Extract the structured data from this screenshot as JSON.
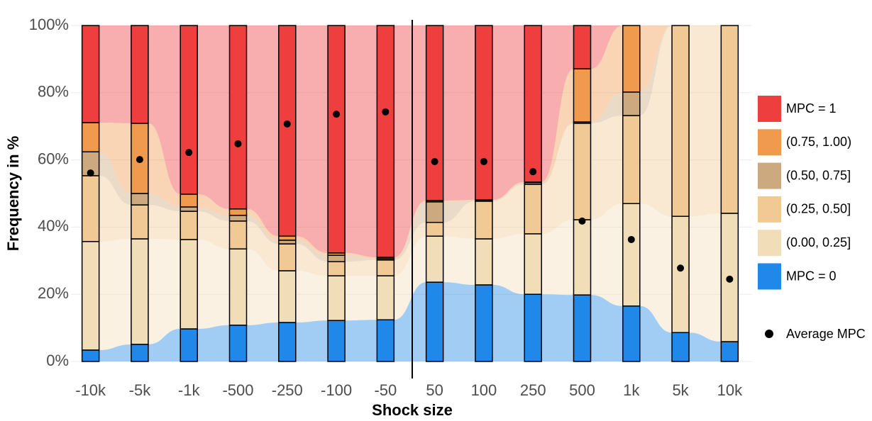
{
  "chart_data": {
    "type": "stacked_bar",
    "x_label": "Shock size",
    "y_label": "Frequency in %",
    "categories": [
      "-10k",
      "-5k",
      "-1k",
      "-500",
      "-250",
      "-100",
      "-50",
      "50",
      "100",
      "250",
      "500",
      "1k",
      "5k",
      "10k"
    ],
    "series": [
      {
        "name": "MPC = 0",
        "color": "#1f88e8",
        "values": [
          3.4,
          5.1,
          9.7,
          10.8,
          11.6,
          12.2,
          12.4,
          23.6,
          22.8,
          20.0,
          19.8,
          16.5,
          8.6,
          5.9
        ]
      },
      {
        "name": "(0.00, 0.25]",
        "color": "#f2ddb9",
        "values": [
          32.3,
          31.4,
          26.6,
          22.7,
          15.4,
          13.3,
          13.1,
          13.7,
          13.7,
          18.0,
          22.4,
          30.5,
          34.6,
          38.2
        ]
      },
      {
        "name": "(0.25, 0.50]",
        "color": "#f0c994",
        "values": [
          19.6,
          10.1,
          8.4,
          8.3,
          8.0,
          4.2,
          4.7,
          4.1,
          11.2,
          14.7,
          28.7,
          26.2,
          56.8,
          55.9
        ]
      },
      {
        "name": "(0.50, 0.75]",
        "color": "#cca97e",
        "values": [
          7.1,
          3.4,
          1.3,
          1.7,
          1.1,
          1.9,
          0.4,
          6.1,
          0.2,
          0.5,
          0.4,
          7.0,
          0,
          0
        ]
      },
      {
        "name": "(0.75, 1.00)",
        "color": "#f09a4e",
        "values": [
          8.7,
          20.9,
          3.8,
          1.9,
          1.2,
          0.7,
          0.4,
          0.4,
          0.2,
          0.2,
          15.8,
          19.8,
          0,
          0
        ]
      },
      {
        "name": "MPC = 1",
        "color": "#ef3e3e",
        "values": [
          28.9,
          29.1,
          50.2,
          54.6,
          62.7,
          67.7,
          69.0,
          52.1,
          51.9,
          46.6,
          12.9,
          0,
          0,
          0
        ]
      }
    ],
    "average": {
      "name": "Average MPC",
      "color": "#000000",
      "values": [
        56.1,
        60.1,
        62.2,
        64.8,
        70.7,
        73.6,
        74.3,
        59.5,
        59.5,
        56.5,
        41.8,
        36.3,
        27.8,
        24.5
      ]
    },
    "ylim": [
      0,
      100
    ],
    "yticks": [
      {
        "value": 0,
        "label": "0%"
      },
      {
        "value": 20,
        "label": "20%"
      },
      {
        "value": 40,
        "label": "40%"
      },
      {
        "value": 60,
        "label": "60%"
      },
      {
        "value": 80,
        "label": "80%"
      },
      {
        "value": 100,
        "label": "100%"
      }
    ],
    "grid": true,
    "legend": "right"
  }
}
